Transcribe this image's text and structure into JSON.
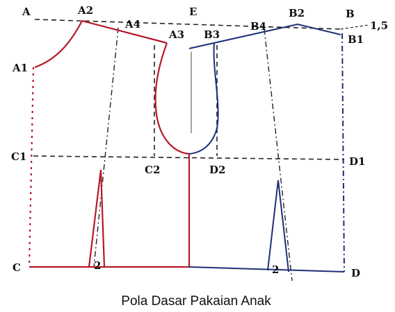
{
  "points": [
    "A",
    "A2",
    "A4",
    "E",
    "B2",
    "B",
    "1,5",
    "A1",
    "A3",
    "B3",
    "B4",
    "B1",
    "C1",
    "C2",
    "D2",
    "D1",
    "C",
    "2",
    "2",
    "D"
  ],
  "caption": "Pola Dasar Pakaian Anak"
}
